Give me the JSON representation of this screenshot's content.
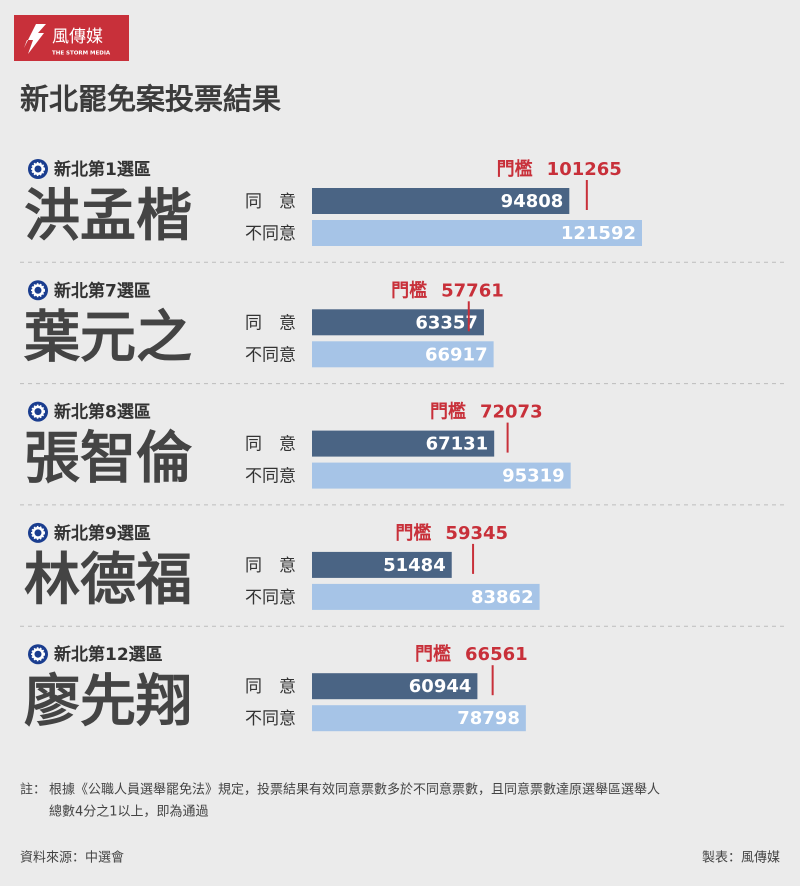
{
  "header": {
    "logo": "風傳媒",
    "logo_sub": "THE STORM MEDIA",
    "title": "新北罷免案投票結果"
  },
  "chart_data": [
    {
      "type": "bar",
      "orientation": "horizontal",
      "district": "新北第1選區",
      "title": "洪孟楷",
      "categories": [
        "同　意",
        "不同意"
      ],
      "values": [
        94808,
        121592
      ],
      "colors": [
        "#4a6484",
        "#a6c4e7"
      ],
      "threshold_label": "門檻",
      "threshold": 101265,
      "threshold_color": "#c8303a"
    },
    {
      "type": "bar",
      "orientation": "horizontal",
      "district": "新北第7選區",
      "title": "葉元之",
      "categories": [
        "同　意",
        "不同意"
      ],
      "values": [
        63357,
        66917
      ],
      "colors": [
        "#4a6484",
        "#a6c4e7"
      ],
      "threshold_label": "門檻",
      "threshold": 57761,
      "threshold_color": "#c8303a"
    },
    {
      "type": "bar",
      "orientation": "horizontal",
      "district": "新北第8選區",
      "title": "張智倫",
      "categories": [
        "同　意",
        "不同意"
      ],
      "values": [
        67131,
        95319
      ],
      "colors": [
        "#4a6484",
        "#a6c4e7"
      ],
      "threshold_label": "門檻",
      "threshold": 72073,
      "threshold_color": "#c8303a"
    },
    {
      "type": "bar",
      "orientation": "horizontal",
      "district": "新北第9選區",
      "title": "林德福",
      "categories": [
        "同　意",
        "不同意"
      ],
      "values": [
        51484,
        83862
      ],
      "colors": [
        "#4a6484",
        "#a6c4e7"
      ],
      "threshold_label": "門檻",
      "threshold": 59345,
      "threshold_color": "#c8303a"
    },
    {
      "type": "bar",
      "orientation": "horizontal",
      "district": "新北第12選區",
      "title": "廖先翔",
      "categories": [
        "同　意",
        "不同意"
      ],
      "values": [
        60944,
        78798
      ],
      "colors": [
        "#4a6484",
        "#a6c4e7"
      ],
      "threshold_label": "門檻",
      "threshold": 66561,
      "threshold_color": "#c8303a"
    }
  ],
  "footer": {
    "note_prefix": "註：",
    "note_lines": [
      "根據《公職人員選舉罷免法》規定，投票結果有效同意票數多於不同意票數，且同意票數達原選舉區選舉人",
      "總數4分之1以上，即為通過"
    ],
    "source": "資料來源：中選會",
    "credit": "製表：風傳媒"
  }
}
